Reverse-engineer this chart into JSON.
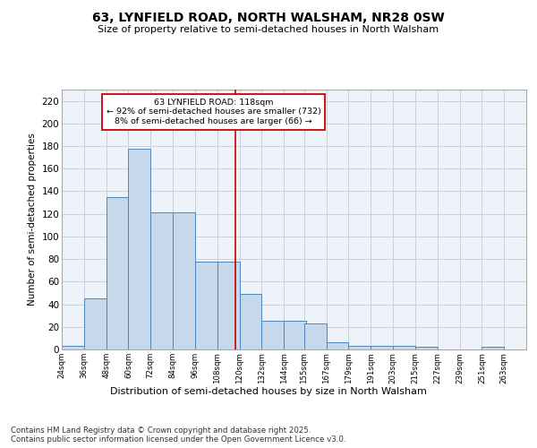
{
  "title_line1": "63, LYNFIELD ROAD, NORTH WALSHAM, NR28 0SW",
  "title_line2": "Size of property relative to semi-detached houses in North Walsham",
  "xlabel": "Distribution of semi-detached houses by size in North Walsham",
  "ylabel": "Number of semi-detached properties",
  "footer_line1": "Contains HM Land Registry data © Crown copyright and database right 2025.",
  "footer_line2": "Contains public sector information licensed under the Open Government Licence v3.0.",
  "annotation_title": "63 LYNFIELD ROAD: 118sqm",
  "annotation_line1": "← 92% of semi-detached houses are smaller (732)",
  "annotation_line2": "8% of semi-detached houses are larger (66) →",
  "property_size": 118,
  "bar_left_edges": [
    24,
    36,
    48,
    60,
    72,
    84,
    96,
    108,
    120,
    132,
    144,
    155,
    167,
    179,
    191,
    203,
    215,
    227,
    239,
    251
  ],
  "bar_heights": [
    3,
    45,
    135,
    178,
    121,
    121,
    78,
    78,
    49,
    25,
    25,
    23,
    6,
    3,
    3,
    3,
    2,
    0,
    0,
    2
  ],
  "bin_width": 12,
  "tick_labels": [
    "24sqm",
    "36sqm",
    "48sqm",
    "60sqm",
    "72sqm",
    "84sqm",
    "96sqm",
    "108sqm",
    "120sqm",
    "132sqm",
    "144sqm",
    "155sqm",
    "167sqm",
    "179sqm",
    "191sqm",
    "203sqm",
    "215sqm",
    "227sqm",
    "239sqm",
    "251sqm",
    "263sqm"
  ],
  "bar_fill_color": "#c6d9ec",
  "bar_edge_color": "#4e86b8",
  "grid_color": "#c8d0e0",
  "background_color": "#eef2f9",
  "vline_color": "#cc0000",
  "annotation_box_edge": "#cc0000",
  "ylim": [
    0,
    230
  ],
  "yticks": [
    0,
    20,
    40,
    60,
    80,
    100,
    120,
    140,
    160,
    180,
    200,
    220
  ]
}
